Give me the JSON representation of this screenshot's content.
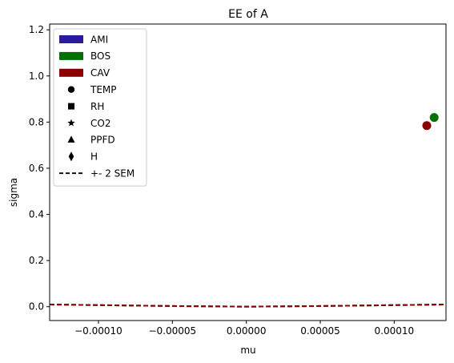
{
  "chart_data": {
    "type": "scatter",
    "title": "EE of A",
    "xlabel": "mu",
    "ylabel": "sigma",
    "xlim": [
      -0.000133,
      0.000135
    ],
    "ylim": [
      -0.06,
      1.225
    ],
    "xticks": [
      -0.0001,
      -5e-05,
      0.0,
      5e-05,
      0.0001
    ],
    "xtick_labels": [
      "−0.00010",
      "−0.00005",
      "0.00000",
      "0.00005",
      "0.00010"
    ],
    "yticks": [
      0.0,
      0.2,
      0.4,
      0.6,
      0.8,
      1.0,
      1.2
    ],
    "ytick_labels": [
      "0.0",
      "0.2",
      "0.4",
      "0.6",
      "0.8",
      "1.0",
      "1.2"
    ],
    "grid": false,
    "legend_position": "upper-left",
    "colors": {
      "AMI": "#2a1aa0",
      "BOS": "#007000",
      "CAV": "#8b0000"
    },
    "points": [
      {
        "group": "BOS",
        "marker": "TEMP",
        "x": 0.000127,
        "y": 0.82,
        "color": "#007000"
      },
      {
        "group": "CAV",
        "marker": "TEMP",
        "x": 0.000122,
        "y": 0.785,
        "color": "#8b0000"
      }
    ],
    "sem_lines": [
      {
        "group": "AMI",
        "color": "#2a1aa0",
        "x": [
          -0.000133,
          -0.0001,
          -5e-05,
          0.0,
          5e-05,
          0.0001,
          0.000135
        ],
        "y": [
          0.0095,
          0.0068,
          0.0028,
          0.0002,
          0.0028,
          0.0068,
          0.0095
        ]
      },
      {
        "group": "BOS",
        "color": "#007000",
        "x": [
          -0.000133,
          -0.0001,
          -5e-05,
          0.0,
          5e-05,
          0.0001,
          0.000135
        ],
        "y": [
          0.0095,
          0.0068,
          0.0028,
          0.0002,
          0.0028,
          0.0068,
          0.0095
        ]
      },
      {
        "group": "CAV",
        "color": "#8b0000",
        "x": [
          -0.000133,
          -0.0001,
          -5e-05,
          0.0,
          5e-05,
          0.0001,
          0.000135
        ],
        "y": [
          0.0095,
          0.0068,
          0.0028,
          0.0002,
          0.0028,
          0.0068,
          0.0095
        ]
      }
    ],
    "legend": [
      {
        "label": "AMI",
        "kind": "patch",
        "color": "#2a1aa0"
      },
      {
        "label": "BOS",
        "kind": "patch",
        "color": "#007000"
      },
      {
        "label": "CAV",
        "kind": "patch",
        "color": "#8b0000"
      },
      {
        "label": "TEMP",
        "kind": "marker",
        "marker": "circle",
        "color": "#000000"
      },
      {
        "label": "RH",
        "kind": "marker",
        "marker": "square",
        "color": "#000000"
      },
      {
        "label": "CO2",
        "kind": "marker",
        "marker": "star",
        "color": "#000000"
      },
      {
        "label": "PPFD",
        "kind": "marker",
        "marker": "triangle",
        "color": "#000000"
      },
      {
        "label": "H",
        "kind": "marker",
        "marker": "thin-diamond",
        "color": "#000000"
      },
      {
        "label": "+- 2 SEM",
        "kind": "line",
        "dash": true,
        "color": "#000000"
      }
    ]
  }
}
